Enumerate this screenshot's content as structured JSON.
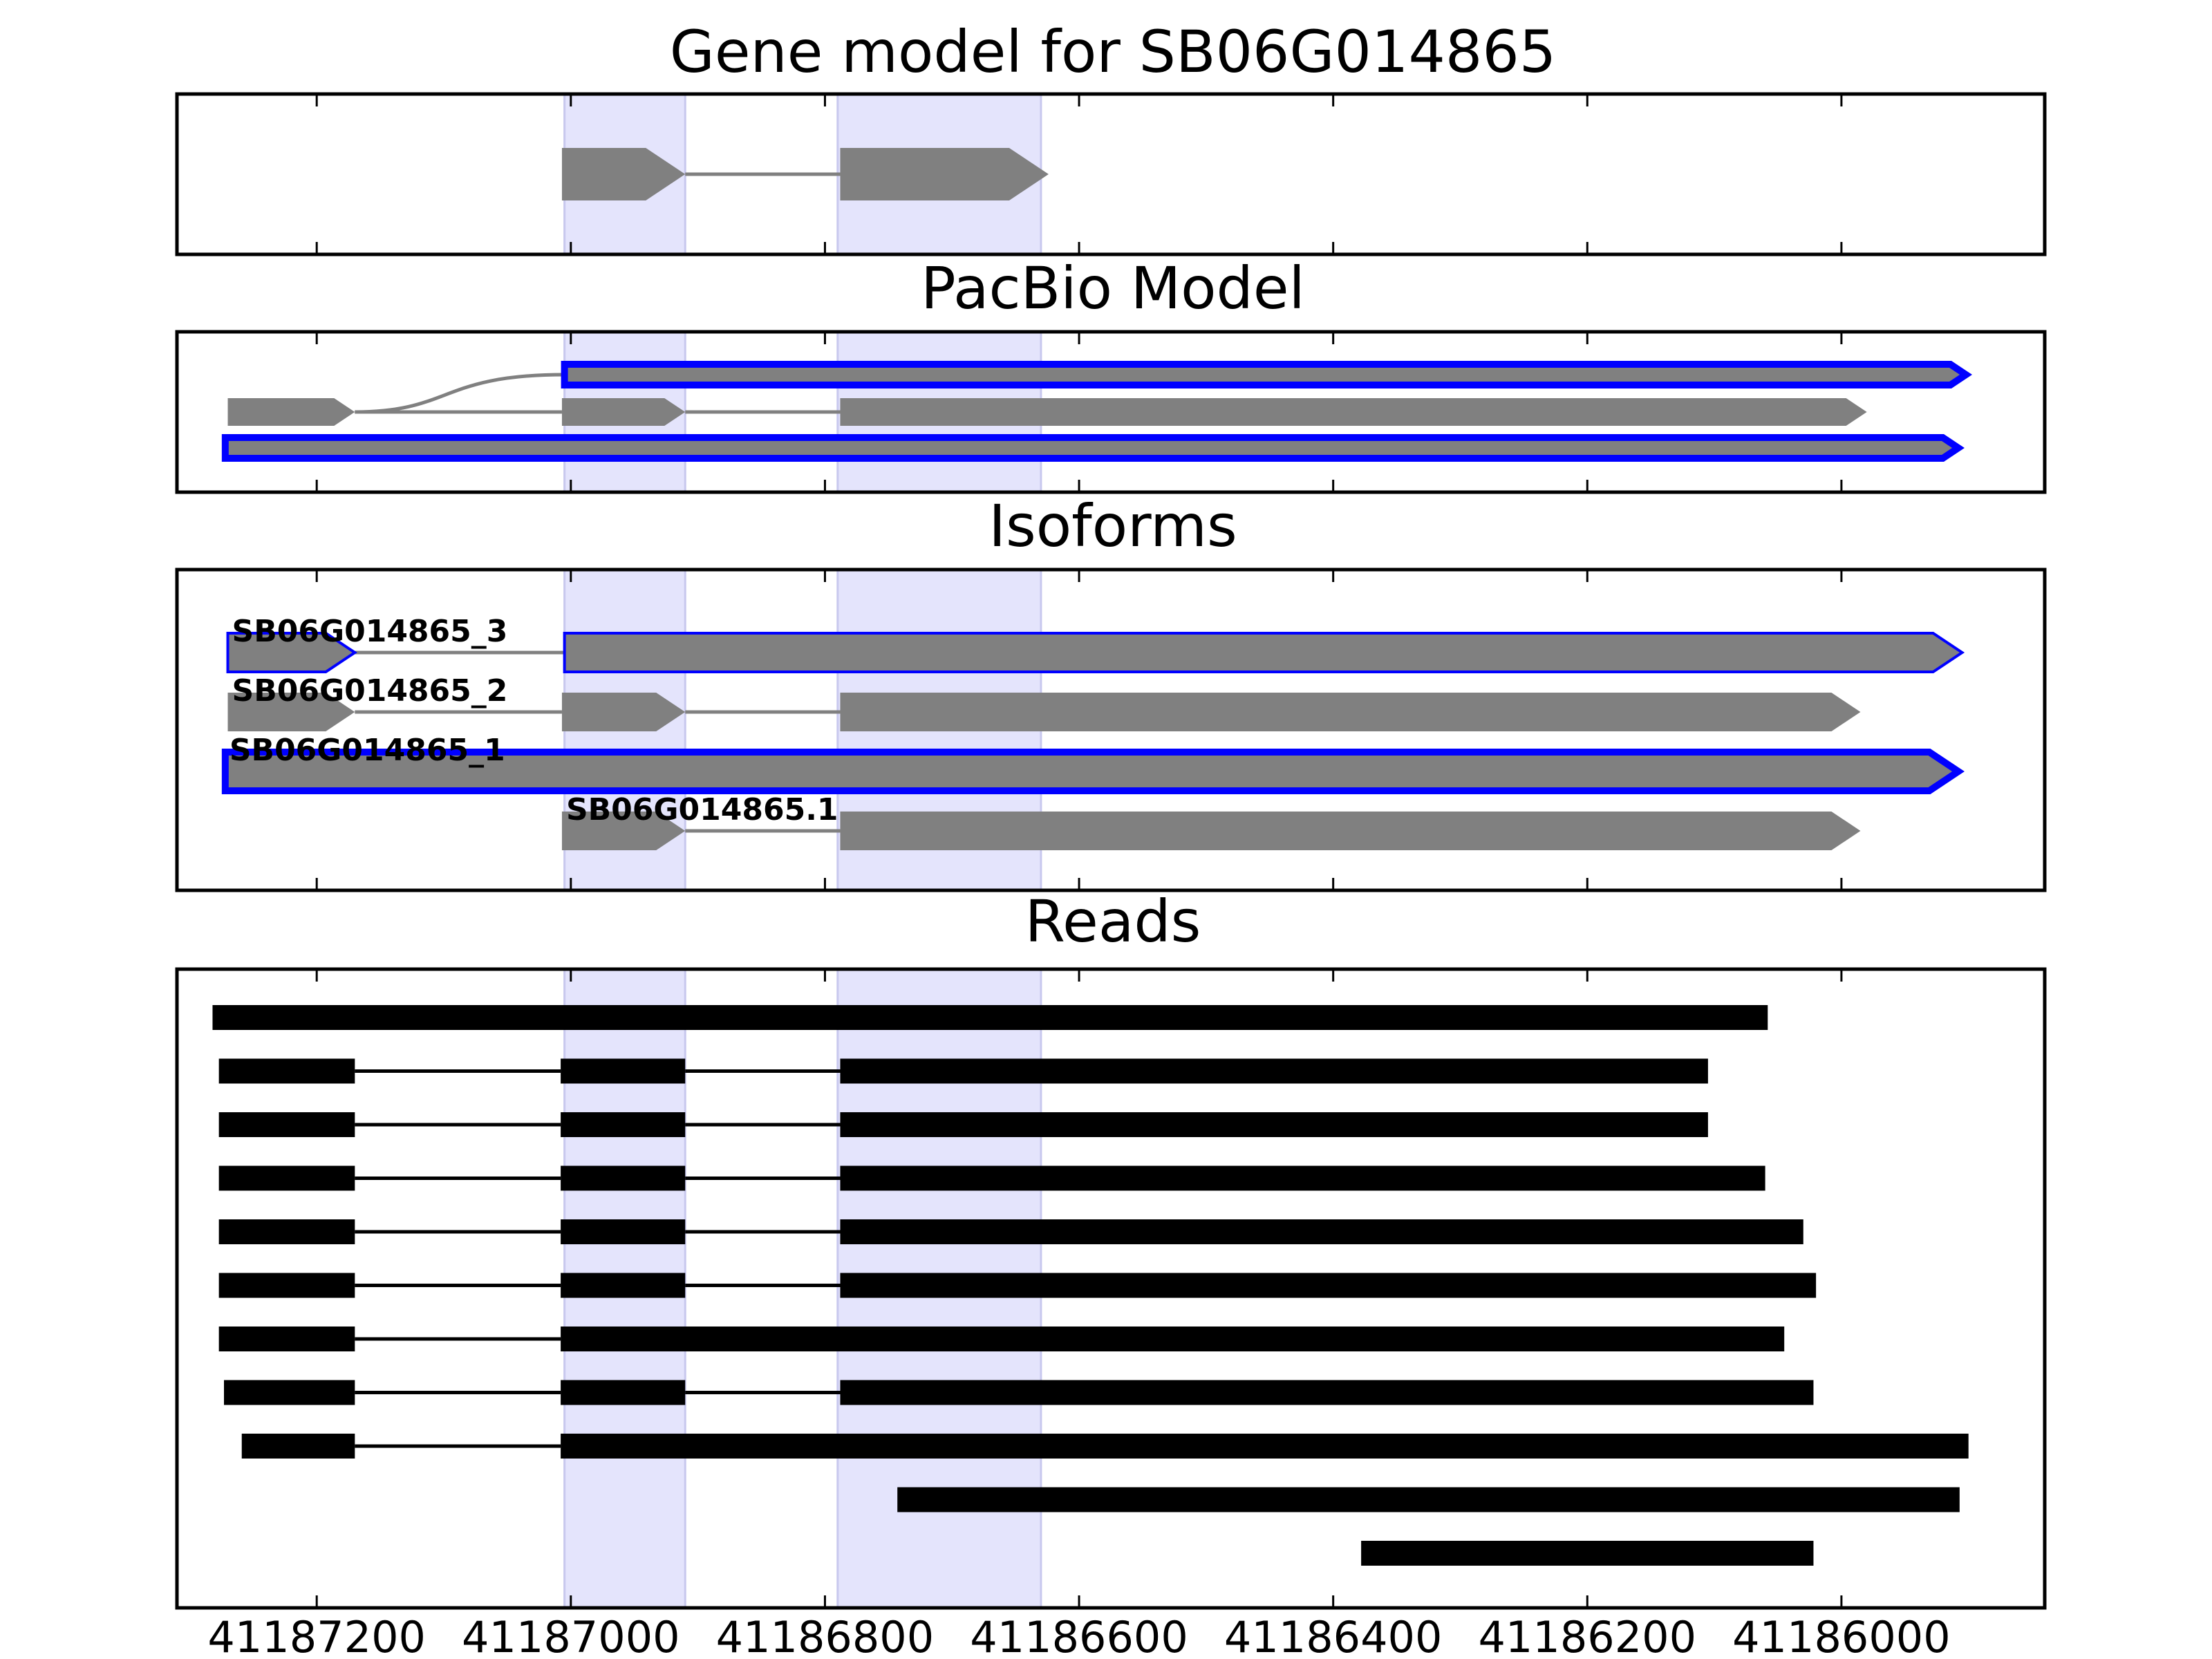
{
  "figure": {
    "x_axis": {
      "min": 41187310,
      "max": 41185840,
      "ticks": [
        41187200,
        41187000,
        41186800,
        41186600,
        41186400,
        41186200,
        41186000
      ],
      "tick_labels": [
        "41187200",
        "41187000",
        "41186800",
        "41186600",
        "41186400",
        "41186200",
        "41186000"
      ]
    },
    "highlight_regions": [
      {
        "start": 41187005,
        "end": 41186910
      },
      {
        "start": 41186790,
        "end": 41186630
      }
    ],
    "colors": {
      "feature": "#808080",
      "selected_outline": "#0000ff",
      "intron": "#808080",
      "highlight": "#e4e4fc",
      "read": "#000000"
    },
    "panels": {
      "gene_model": {
        "title": "Gene model for SB06G014865",
        "strand": "-",
        "exons": [
          {
            "start": 41187007,
            "end": 41186910
          },
          {
            "start": 41186788,
            "end": 41186624
          }
        ]
      },
      "pacbio": {
        "title": "PacBio Model",
        "tracks": [
          {
            "selected": true,
            "exons": [
              {
                "start": 41187005,
                "end": 41185902
              }
            ],
            "intron_from": 41187195
          },
          {
            "selected": false,
            "exons": [
              {
                "start": 41187270,
                "end": 41187170
              },
              {
                "start": 41187007,
                "end": 41186910
              },
              {
                "start": 41186788,
                "end": 41185980
              }
            ]
          },
          {
            "selected": true,
            "exons": [
              {
                "start": 41187272,
                "end": 41185908
              }
            ]
          }
        ]
      },
      "isoforms": {
        "title": "Isoforms",
        "tracks": [
          {
            "label": "SB06G014865_3",
            "selected": "thin",
            "exons": [
              {
                "start": 41187270,
                "end": 41187170
              },
              {
                "start": 41187005,
                "end": 41185905
              }
            ]
          },
          {
            "label": "SB06G014865_2",
            "selected": "none",
            "exons": [
              {
                "start": 41187270,
                "end": 41187170
              },
              {
                "start": 41187007,
                "end": 41186910
              },
              {
                "start": 41186788,
                "end": 41185985
              }
            ]
          },
          {
            "label": "SB06G014865_1",
            "selected": "thick",
            "exons": [
              {
                "start": 41187272,
                "end": 41185908
              }
            ]
          },
          {
            "label": "SB06G014865.1",
            "selected": "none",
            "exons": [
              {
                "start": 41187007,
                "end": 41186910
              },
              {
                "start": 41186788,
                "end": 41185985
              }
            ]
          }
        ]
      },
      "reads": {
        "title": "Reads",
        "tracks": [
          [
            {
              "start": 41187282,
              "end": 41186058
            }
          ],
          [
            {
              "start": 41187277,
              "end": 41187170
            },
            {
              "start": 41187008,
              "end": 41186910
            },
            {
              "start": 41186788,
              "end": 41186105
            }
          ],
          [
            {
              "start": 41187277,
              "end": 41187170
            },
            {
              "start": 41187008,
              "end": 41186910
            },
            {
              "start": 41186788,
              "end": 41186105
            }
          ],
          [
            {
              "start": 41187277,
              "end": 41187170
            },
            {
              "start": 41187008,
              "end": 41186910
            },
            {
              "start": 41186788,
              "end": 41186060
            }
          ],
          [
            {
              "start": 41187277,
              "end": 41187170
            },
            {
              "start": 41187008,
              "end": 41186910
            },
            {
              "start": 41186788,
              "end": 41186030
            }
          ],
          [
            {
              "start": 41187277,
              "end": 41187170
            },
            {
              "start": 41187008,
              "end": 41186910
            },
            {
              "start": 41186788,
              "end": 41186020
            }
          ],
          [
            {
              "start": 41187277,
              "end": 41187170
            },
            {
              "start": 41187008,
              "end": 41186045
            }
          ],
          [
            {
              "start": 41187273,
              "end": 41187170
            },
            {
              "start": 41187008,
              "end": 41186910
            },
            {
              "start": 41186788,
              "end": 41186022
            }
          ],
          [
            {
              "start": 41187259,
              "end": 41187170
            },
            {
              "start": 41187008,
              "end": 41185900
            }
          ],
          [
            {
              "start": 41186743,
              "end": 41185907
            }
          ],
          [
            {
              "start": 41186378,
              "end": 41186022
            }
          ]
        ]
      }
    }
  }
}
